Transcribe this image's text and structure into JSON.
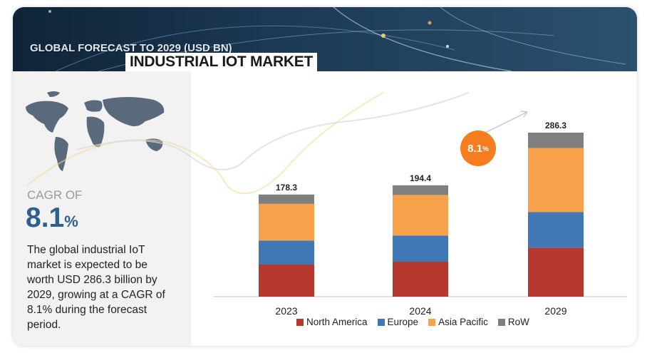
{
  "header": {
    "subtitle": "GLOBAL FORECAST TO 2029 (USD BN)",
    "title": "INDUSTRIAL IOT MARKET"
  },
  "left_panel": {
    "cagr_label": "CAGR OF",
    "cagr_value": "8.1",
    "cagr_unit": "%",
    "description": "The global industrial IoT\nmarket  is expected to be\nworth USD 286.3 billion by\n2029, growing at a CAGR of\n8.1% during the forecast\nperiod."
  },
  "growth_bubble": {
    "value": "8.1",
    "unit": "%"
  },
  "colors": {
    "north_america": "#b5392e",
    "europe": "#3f78b5",
    "asia_pacific": "#f7a24a",
    "row": "#7f7f7f",
    "accent": "#f57c1f"
  },
  "chart_data": {
    "type": "bar",
    "stacked": true,
    "title": "INDUSTRIAL IOT MARKET",
    "categories": [
      "2023",
      "2024",
      "2029"
    ],
    "totals": [
      178.3,
      194.4,
      286.3
    ],
    "total_labels": [
      "178.3",
      "194.4",
      "286.3"
    ],
    "series": [
      {
        "name": "North America",
        "values": [
          56.0,
          61.0,
          85.5
        ]
      },
      {
        "name": "Europe",
        "values": [
          42.0,
          45.5,
          62.0
        ]
      },
      {
        "name": "Asia Pacific",
        "values": [
          64.0,
          71.0,
          112.0
        ]
      },
      {
        "name": "RoW",
        "values": [
          16.3,
          16.9,
          26.8
        ]
      }
    ],
    "legend_position": "bottom",
    "grid": false,
    "ylim": [
      0,
      286.3
    ]
  }
}
